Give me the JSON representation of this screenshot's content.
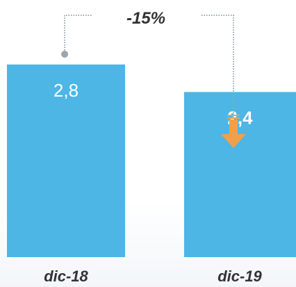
{
  "chart_data": {
    "type": "bar",
    "categories": [
      "dic-18",
      "dic-19"
    ],
    "values": [
      2.8,
      2.4
    ],
    "value_labels": [
      "2,8",
      "2,4"
    ],
    "annotation": "-15%",
    "ylim": [
      0,
      3.3
    ],
    "grid": false,
    "legend": "none",
    "title": "",
    "xlabel": "",
    "ylabel": ""
  },
  "colors": {
    "bar": "#4db6e5",
    "arrow": "#f0a04b",
    "connector": "#9aa5ad",
    "label": "#333333",
    "value_text": "#ffffff"
  },
  "icons": {
    "change_marker": "down-arrow-icon"
  }
}
